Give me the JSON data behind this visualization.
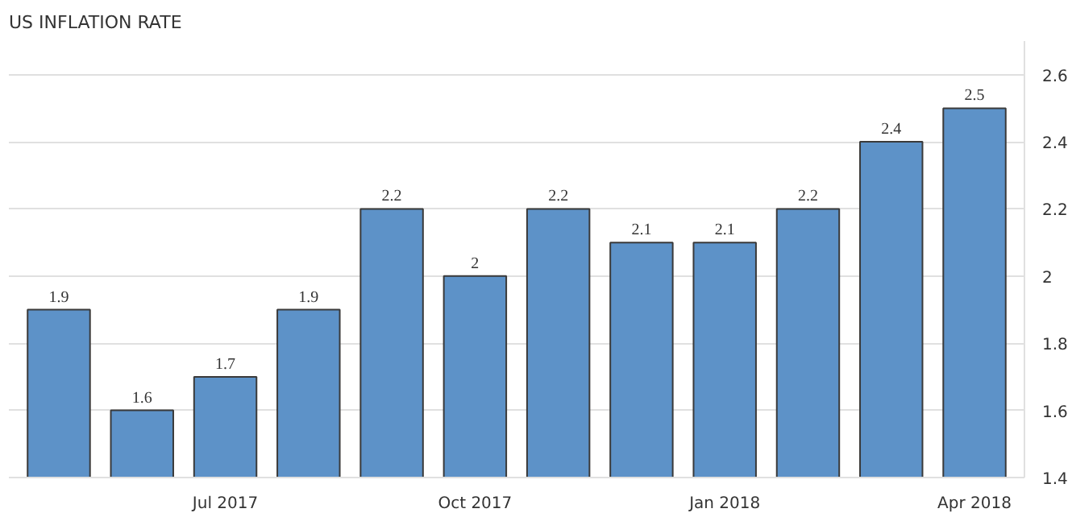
{
  "chart_data": {
    "type": "bar",
    "title": "US INFLATION RATE",
    "categories": [
      null,
      null,
      "Jul 2017",
      null,
      null,
      "Oct 2017",
      null,
      null,
      "Jan 2018",
      null,
      null,
      "Apr 2018"
    ],
    "values": [
      1.9,
      1.6,
      1.7,
      1.9,
      2.2,
      2,
      2.2,
      2.1,
      2.1,
      2.2,
      2.4,
      2.5
    ],
    "color": "#5d92c8",
    "ylim": [
      1.4,
      2.7
    ],
    "yticks": [
      1.4,
      1.6,
      1.8,
      2,
      2.2,
      2.4,
      2.6
    ],
    "grid": "y",
    "data_labels": true
  }
}
